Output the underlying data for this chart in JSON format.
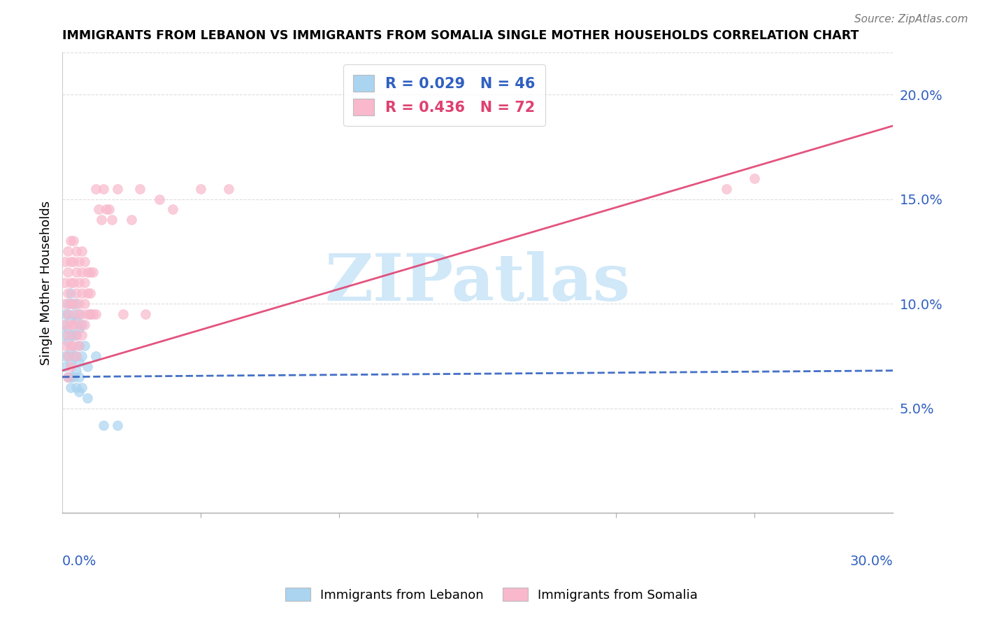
{
  "title": "IMMIGRANTS FROM LEBANON VS IMMIGRANTS FROM SOMALIA SINGLE MOTHER HOUSEHOLDS CORRELATION CHART",
  "source": "Source: ZipAtlas.com",
  "ylabel": "Single Mother Households",
  "xlim": [
    0.0,
    0.3
  ],
  "ylim": [
    0.0,
    0.22
  ],
  "ytick_vals": [
    0.05,
    0.1,
    0.15,
    0.2
  ],
  "ytick_labels": [
    "5.0%",
    "10.0%",
    "15.0%",
    "20.0%"
  ],
  "xtick_left_label": "0.0%",
  "xtick_right_label": "30.0%",
  "lebanon_color": "#aad4f0",
  "somalia_color": "#f9b8cc",
  "lebanon_line_color": "#3060c0",
  "somalia_line_color": "#e04070",
  "lebanon_R": 0.029,
  "lebanon_N": 46,
  "somalia_R": 0.436,
  "somalia_N": 72,
  "watermark": "ZIPatlas",
  "watermark_color": "#d0e8f8",
  "grid_color": "#dddddd",
  "grid_style": "--",
  "lebanon_line_x0": 0.0,
  "lebanon_line_y0": 0.065,
  "lebanon_line_x1": 0.3,
  "lebanon_line_y1": 0.068,
  "somalia_line_x0": 0.0,
  "somalia_line_y0": 0.068,
  "somalia_line_x1": 0.3,
  "somalia_line_y1": 0.185,
  "lebanon_points_x": [
    0.001,
    0.001,
    0.001,
    0.001,
    0.001,
    0.002,
    0.002,
    0.002,
    0.002,
    0.002,
    0.002,
    0.003,
    0.003,
    0.003,
    0.003,
    0.003,
    0.003,
    0.003,
    0.003,
    0.004,
    0.004,
    0.004,
    0.004,
    0.004,
    0.005,
    0.005,
    0.005,
    0.005,
    0.005,
    0.005,
    0.006,
    0.006,
    0.006,
    0.006,
    0.006,
    0.006,
    0.007,
    0.007,
    0.007,
    0.008,
    0.009,
    0.009,
    0.01,
    0.012,
    0.015,
    0.02
  ],
  "lebanon_points_y": [
    0.095,
    0.09,
    0.085,
    0.075,
    0.07,
    0.1,
    0.095,
    0.088,
    0.082,
    0.075,
    0.065,
    0.105,
    0.1,
    0.092,
    0.085,
    0.078,
    0.072,
    0.065,
    0.06,
    0.1,
    0.095,
    0.085,
    0.075,
    0.065,
    0.1,
    0.092,
    0.085,
    0.075,
    0.068,
    0.06,
    0.095,
    0.088,
    0.08,
    0.072,
    0.065,
    0.058,
    0.09,
    0.075,
    0.06,
    0.08,
    0.07,
    0.055,
    0.095,
    0.075,
    0.042,
    0.042
  ],
  "somalia_points_x": [
    0.001,
    0.001,
    0.001,
    0.001,
    0.001,
    0.002,
    0.002,
    0.002,
    0.002,
    0.002,
    0.002,
    0.002,
    0.003,
    0.003,
    0.003,
    0.003,
    0.003,
    0.003,
    0.003,
    0.004,
    0.004,
    0.004,
    0.004,
    0.004,
    0.004,
    0.005,
    0.005,
    0.005,
    0.005,
    0.005,
    0.005,
    0.006,
    0.006,
    0.006,
    0.006,
    0.006,
    0.007,
    0.007,
    0.007,
    0.007,
    0.007,
    0.008,
    0.008,
    0.008,
    0.008,
    0.009,
    0.009,
    0.009,
    0.01,
    0.01,
    0.01,
    0.011,
    0.011,
    0.012,
    0.012,
    0.013,
    0.014,
    0.015,
    0.016,
    0.017,
    0.018,
    0.02,
    0.022,
    0.025,
    0.028,
    0.03,
    0.035,
    0.04,
    0.05,
    0.06,
    0.24,
    0.25
  ],
  "somalia_points_y": [
    0.12,
    0.11,
    0.1,
    0.09,
    0.08,
    0.125,
    0.115,
    0.105,
    0.095,
    0.085,
    0.075,
    0.065,
    0.13,
    0.12,
    0.11,
    0.1,
    0.09,
    0.08,
    0.07,
    0.13,
    0.12,
    0.11,
    0.1,
    0.09,
    0.08,
    0.125,
    0.115,
    0.105,
    0.095,
    0.085,
    0.075,
    0.12,
    0.11,
    0.1,
    0.09,
    0.08,
    0.125,
    0.115,
    0.105,
    0.095,
    0.085,
    0.12,
    0.11,
    0.1,
    0.09,
    0.115,
    0.105,
    0.095,
    0.115,
    0.105,
    0.095,
    0.115,
    0.095,
    0.155,
    0.095,
    0.145,
    0.14,
    0.155,
    0.145,
    0.145,
    0.14,
    0.155,
    0.095,
    0.14,
    0.155,
    0.095,
    0.15,
    0.145,
    0.155,
    0.155,
    0.155,
    0.16
  ]
}
